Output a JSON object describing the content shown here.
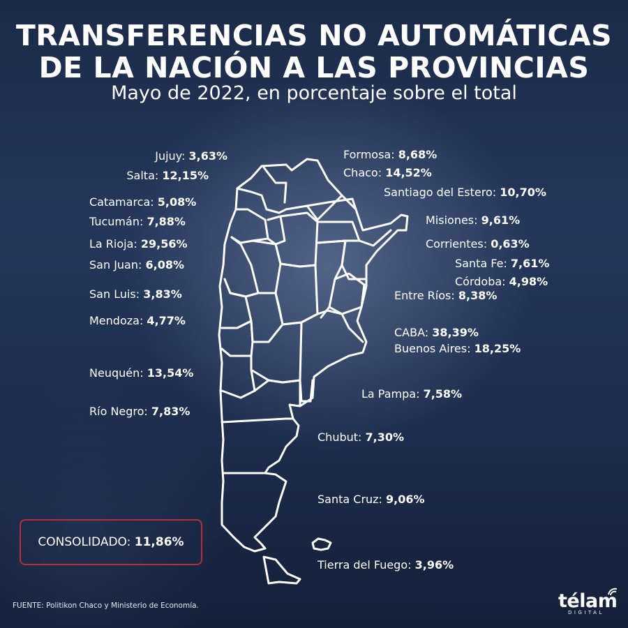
{
  "title": {
    "line1": "TRANSFERENCIAS NO AUTOMÁTICAS",
    "line2": "DE LA NACIÓN A LAS PROVINCIAS",
    "subtitle": "Mayo de 2022, en porcentaje sobre el total"
  },
  "provinces": {
    "jujuy": {
      "name": "Jujuy:",
      "value": "3,63%"
    },
    "salta": {
      "name": "Salta:",
      "value": "12,15%"
    },
    "catamarca": {
      "name": "Catamarca:",
      "value": "5,08%"
    },
    "tucuman": {
      "name": "Tucumán:",
      "value": "7,88%"
    },
    "la_rioja": {
      "name": "La Rioja:",
      "value": "29,56%"
    },
    "san_juan": {
      "name": "San Juan:",
      "value": "6,08%"
    },
    "san_luis": {
      "name": "San Luis:",
      "value": "3,83%"
    },
    "mendoza": {
      "name": "Mendoza:",
      "value": "4,77%"
    },
    "neuquen": {
      "name": "Neuquén:",
      "value": "13,54%"
    },
    "rio_negro": {
      "name": "Río Negro:",
      "value": "7,83%"
    },
    "formosa": {
      "name": "Formosa:",
      "value": "8,68%"
    },
    "chaco": {
      "name": "Chaco:",
      "value": "14,52%"
    },
    "santiago_del_estero": {
      "name": "Santiago del Estero:",
      "value": "10,70%"
    },
    "misiones": {
      "name": "Misiones:",
      "value": "9,61%"
    },
    "corrientes": {
      "name": "Corrientes:",
      "value": "0,63%"
    },
    "santa_fe": {
      "name": "Santa Fe:",
      "value": "7,61%"
    },
    "cordoba": {
      "name": "Córdoba:",
      "value": "4,98%"
    },
    "entre_rios": {
      "name": "Entre Ríos:",
      "value": "8,38%"
    },
    "caba": {
      "name": "CABA:",
      "value": "38,39%"
    },
    "buenos_aires": {
      "name": "Buenos Aires:",
      "value": "18,25%"
    },
    "la_pampa": {
      "name": "La Pampa:",
      "value": "7,58%"
    },
    "chubut": {
      "name": "Chubut:",
      "value": "7,30%"
    },
    "santa_cruz": {
      "name": "Santa Cruz:",
      "value": "9,06%"
    },
    "tierra_del_fuego": {
      "name": "Tierra del Fuego:",
      "value": "3,96%"
    }
  },
  "consolidado": {
    "name": "CONSOLIDADO:",
    "value": "11,86%",
    "border_color": "#b0303c"
  },
  "source": "FUENTE: Politikon Chaco y Ministerio de Economía.",
  "logo": {
    "word": "télam",
    "sub": "DIGITAL"
  },
  "colors": {
    "background": "#1f3050",
    "map_outline": "#ffffff",
    "text": "#ffffff"
  }
}
